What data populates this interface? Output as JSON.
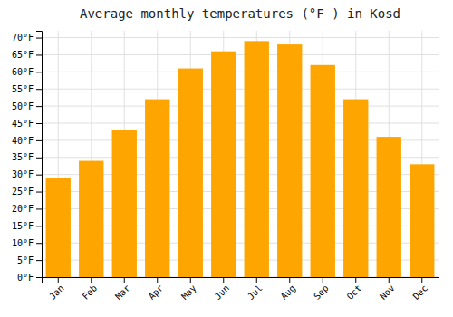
{
  "chart_data": {
    "type": "bar",
    "title": "Average monthly temperatures (°F ) in Kosd",
    "categories": [
      "Jan",
      "Feb",
      "Mar",
      "Apr",
      "May",
      "Jun",
      "Jul",
      "Aug",
      "Sep",
      "Oct",
      "Nov",
      "Dec"
    ],
    "values": [
      29,
      34,
      43,
      52,
      61,
      66,
      69,
      68,
      62,
      52,
      41,
      33
    ],
    "color": "#FFA500",
    "ylim": [
      0,
      72
    ],
    "yticks": [
      {
        "value": 0,
        "label": "0°F"
      },
      {
        "value": 5,
        "label": "5°F"
      },
      {
        "value": 10,
        "label": "10°F"
      },
      {
        "value": 15,
        "label": "15°F"
      },
      {
        "value": 20,
        "label": "20°F"
      },
      {
        "value": 25,
        "label": "25°F"
      },
      {
        "value": 30,
        "label": "30°F"
      },
      {
        "value": 35,
        "label": "35°F"
      },
      {
        "value": 40,
        "label": "40°F"
      },
      {
        "value": 45,
        "label": "45°F"
      },
      {
        "value": 50,
        "label": "50°F"
      },
      {
        "value": 55,
        "label": "55°F"
      },
      {
        "value": 60,
        "label": "60°F"
      },
      {
        "value": 65,
        "label": "65°F"
      },
      {
        "value": 70,
        "label": "70°F"
      }
    ],
    "grid": true
  }
}
